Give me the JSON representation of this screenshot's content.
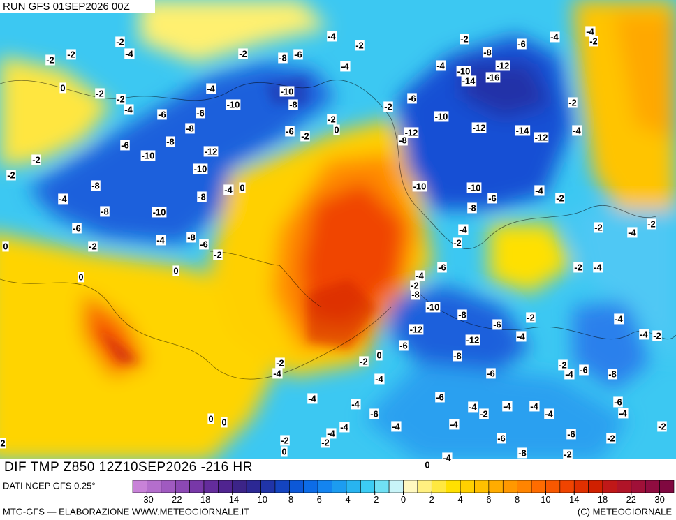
{
  "header": {
    "run": "RUN GFS 01SEP2026 00Z"
  },
  "footer": {
    "title": "DIF TMP Z850 12Z10SEP2026 -216 HR",
    "source": "DATI NCEP GFS 0.25°",
    "credit": "MTG-GFS — ELABORAZIONE WWW.METEOGIORNALE.IT",
    "copyright": "(C) METEOGIORNALE"
  },
  "colorbar": {
    "labels": [
      "-30",
      "-22",
      "-18",
      "-14",
      "-10",
      "-8",
      "-6",
      "-4",
      "-2",
      "0",
      "2",
      "4",
      "6",
      "8",
      "10",
      "14",
      "18",
      "22",
      "30"
    ],
    "colors": [
      "#c882d8",
      "#b46ecc",
      "#a05ac0",
      "#8c48b4",
      "#7838a8",
      "#642c9c",
      "#502490",
      "#3c2488",
      "#2c2894",
      "#2034a8",
      "#1444c0",
      "#0c58d8",
      "#0c6ce8",
      "#1484f0",
      "#1c9cf0",
      "#28b4f0",
      "#3cccf4",
      "#70e0f4",
      "#c8f4f8",
      "#fff8c0",
      "#fff080",
      "#ffe840",
      "#ffe000",
      "#ffd000",
      "#ffc000",
      "#ffac00",
      "#ff9800",
      "#ff8400",
      "#ff6c00",
      "#f85800",
      "#f04400",
      "#e03000",
      "#d02000",
      "#c01818",
      "#b01428",
      "#a01038",
      "#900c40",
      "#800840"
    ]
  },
  "contour_labels": [
    "-4",
    "-2",
    "-2",
    "-4",
    "-2",
    "-2",
    "-2",
    "-8",
    "-6",
    "-4",
    "-2",
    "-8",
    "-6",
    "-4",
    "-4",
    "-2",
    "-4",
    "-10",
    "-12",
    "-14",
    "-16",
    "0",
    "-2",
    "-2",
    "-4",
    "-4",
    "-10",
    "-10",
    "-8",
    "-6",
    "-6",
    "-8",
    "-6",
    "-2",
    "-2",
    "-2",
    "-10",
    "-8",
    "-6",
    "-10",
    "-12",
    "-6",
    "-2",
    "0",
    "-12",
    "-8",
    "-12",
    "-14",
    "-12",
    "-4",
    "-2",
    "-10",
    "-2",
    "-8",
    "-4",
    "0",
    "-8",
    "-10",
    "-10",
    "-4",
    "-2",
    "-6",
    "-8",
    "-4",
    "-8",
    "-10",
    "-6",
    "-4",
    "-2",
    "-4",
    "-2",
    "-4",
    "-8",
    "-6",
    "-2",
    "-2",
    "0",
    "-2",
    "0",
    "-6",
    "-2",
    "-4",
    "-4",
    "0",
    "-2",
    "-8",
    "-10",
    "-8",
    "-2",
    "-4",
    "-6",
    "-12",
    "-4",
    "-4",
    "-2",
    "-12",
    "-6",
    "-8",
    "0",
    "-2",
    "-2",
    "-4",
    "-2",
    "-6",
    "-4",
    "-8",
    "-6",
    "-4",
    "-4",
    "-6",
    "-6",
    "-4",
    "-4",
    "-4",
    "-4",
    "-2",
    "-4",
    "-4",
    "0",
    "0",
    "-6",
    "-4",
    "-4",
    "-4",
    "-4",
    "-2",
    "-2",
    "-2",
    "-6",
    "-6",
    "-2",
    "2",
    "-8",
    "-2",
    "-4",
    "0",
    "0"
  ]
}
